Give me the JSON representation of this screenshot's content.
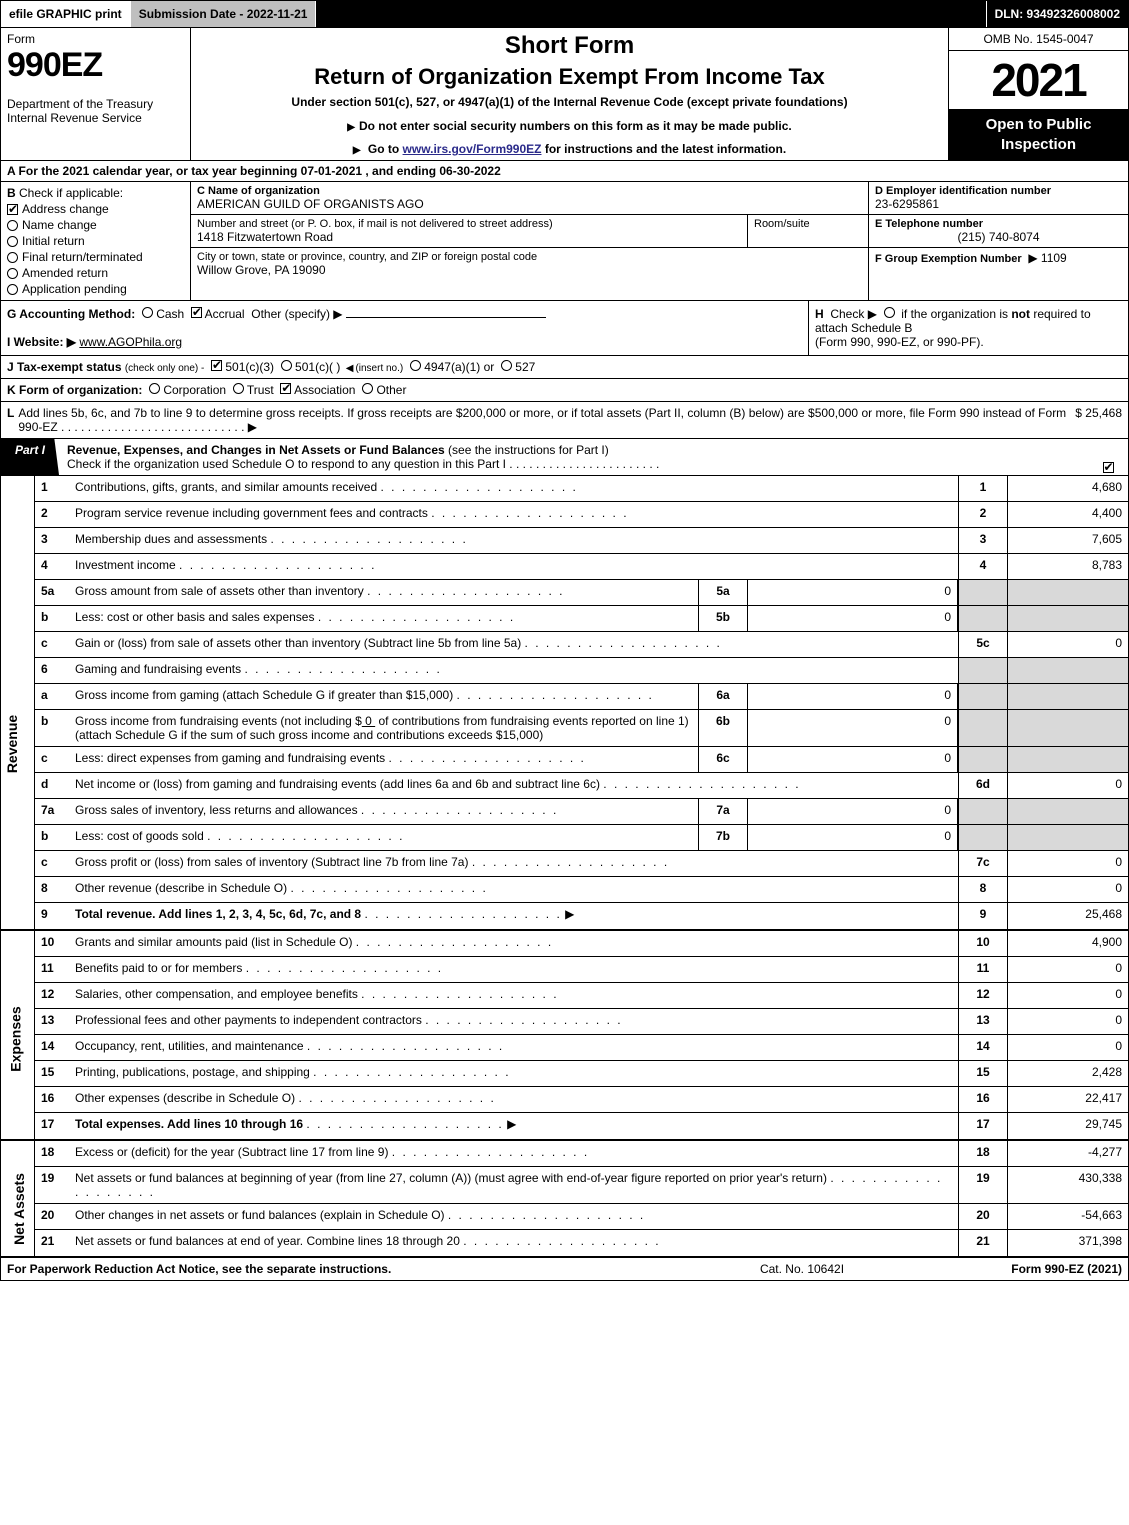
{
  "topbar": {
    "efile": "efile GRAPHIC print",
    "subdate_label": "Submission Date - 2022-11-21",
    "dln": "DLN: 93492326008002"
  },
  "header": {
    "form_word": "Form",
    "form_num": "990EZ",
    "dept": "Department of the Treasury",
    "irs": "Internal Revenue Service",
    "short_form": "Short Form",
    "title2": "Return of Organization Exempt From Income Tax",
    "sub": "Under section 501(c), 527, or 4947(a)(1) of the Internal Revenue Code (except private foundations)",
    "instr1": "Do not enter social security numbers on this form as it may be made public.",
    "instr2_pre": "Go to ",
    "instr2_link": "www.irs.gov/Form990EZ",
    "instr2_post": " for instructions and the latest information.",
    "omb": "OMB No. 1545-0047",
    "year": "2021",
    "open": "Open to Public Inspection"
  },
  "lineA": "A  For the 2021 calendar year, or tax year beginning 07-01-2021 , and ending 06-30-2022",
  "boxB": {
    "label": "B",
    "check_if": "Check if applicable:",
    "items": [
      "Address change",
      "Name change",
      "Initial return",
      "Final return/terminated",
      "Amended return",
      "Application pending"
    ],
    "checked": [
      true,
      false,
      false,
      false,
      false,
      false
    ]
  },
  "boxC": {
    "name_lbl": "C Name of organization",
    "name": "AMERICAN GUILD OF ORGANISTS AGO",
    "addr_lbl": "Number and street (or P. O. box, if mail is not delivered to street address)",
    "addr": "1418 Fitzwatertown Road",
    "room_lbl": "Room/suite",
    "city_lbl": "City or town, state or province, country, and ZIP or foreign postal code",
    "city": "Willow Grove, PA  19090"
  },
  "boxD": {
    "lbl": "D Employer identification number",
    "val": "23-6295861"
  },
  "boxE": {
    "lbl": "E Telephone number",
    "val": "(215) 740-8074"
  },
  "boxF": {
    "lbl": "F Group Exemption Number",
    "val": "1109"
  },
  "rowG": {
    "lbl": "G Accounting Method:",
    "cash": "Cash",
    "accrual": "Accrual",
    "other": "Other (specify)"
  },
  "rowH": {
    "lbl": "H",
    "txt1": "Check ▶",
    "txt2": "if the organization is ",
    "not": "not",
    "txt3": " required to attach Schedule B",
    "txt4": "(Form 990, 990-EZ, or 990-PF)."
  },
  "rowI": {
    "lbl": "I Website: ▶",
    "val": "www.AGOPhila.org"
  },
  "rowJ": {
    "lbl": "J Tax-exempt status",
    "note": "(check only one) -",
    "o1": "501(c)(3)",
    "o2": "501(c)(   )",
    "insert": "(insert no.)",
    "o3": "4947(a)(1) or",
    "o4": "527"
  },
  "rowK": {
    "lbl": "K Form of organization:",
    "opts": [
      "Corporation",
      "Trust",
      "Association",
      "Other"
    ],
    "checked": [
      false,
      false,
      true,
      false
    ]
  },
  "rowL": {
    "lbl": "L",
    "txt": "Add lines 5b, 6c, and 7b to line 9 to determine gross receipts. If gross receipts are $200,000 or more, or if total assets (Part II, column (B) below) are $500,000 or more, file Form 990 instead of Form 990-EZ",
    "amt": "$ 25,468"
  },
  "part1": {
    "tab": "Part I",
    "title": "Revenue, Expenses, and Changes in Net Assets or Fund Balances",
    "title_note": "(see the instructions for Part I)",
    "sub": "Check if the organization used Schedule O to respond to any question in this Part I",
    "checked": true
  },
  "sections": {
    "revenue": "Revenue",
    "expenses": "Expenses",
    "netassets": "Net Assets"
  },
  "lines": {
    "1": {
      "n": "1",
      "d": "Contributions, gifts, grants, and similar amounts received",
      "r": "1",
      "v": "4,680"
    },
    "2": {
      "n": "2",
      "d": "Program service revenue including government fees and contracts",
      "r": "2",
      "v": "4,400"
    },
    "3": {
      "n": "3",
      "d": "Membership dues and assessments",
      "r": "3",
      "v": "7,605"
    },
    "4": {
      "n": "4",
      "d": "Investment income",
      "r": "4",
      "v": "8,783"
    },
    "5a": {
      "n": "5a",
      "d": "Gross amount from sale of assets other than inventory",
      "mn": "5a",
      "mv": "0"
    },
    "5b": {
      "n": "b",
      "d": "Less: cost or other basis and sales expenses",
      "mn": "5b",
      "mv": "0"
    },
    "5c": {
      "n": "c",
      "d": "Gain or (loss) from sale of assets other than inventory (Subtract line 5b from line 5a)",
      "r": "5c",
      "v": "0"
    },
    "6": {
      "n": "6",
      "d": "Gaming and fundraising events"
    },
    "6a": {
      "n": "a",
      "d": "Gross income from gaming (attach Schedule G if greater than $15,000)",
      "mn": "6a",
      "mv": "0"
    },
    "6b": {
      "n": "b",
      "d1": "Gross income from fundraising events (not including $",
      "d1b": "0",
      "d2": "of contributions from fundraising events reported on line 1) (attach Schedule G if the sum of such gross income and contributions exceeds $15,000)",
      "mn": "6b",
      "mv": "0"
    },
    "6c": {
      "n": "c",
      "d": "Less: direct expenses from gaming and fundraising events",
      "mn": "6c",
      "mv": "0"
    },
    "6d": {
      "n": "d",
      "d": "Net income or (loss) from gaming and fundraising events (add lines 6a and 6b and subtract line 6c)",
      "r": "6d",
      "v": "0"
    },
    "7a": {
      "n": "7a",
      "d": "Gross sales of inventory, less returns and allowances",
      "mn": "7a",
      "mv": "0"
    },
    "7b": {
      "n": "b",
      "d": "Less: cost of goods sold",
      "mn": "7b",
      "mv": "0"
    },
    "7c": {
      "n": "c",
      "d": "Gross profit or (loss) from sales of inventory (Subtract line 7b from line 7a)",
      "r": "7c",
      "v": "0"
    },
    "8": {
      "n": "8",
      "d": "Other revenue (describe in Schedule O)",
      "r": "8",
      "v": "0"
    },
    "9": {
      "n": "9",
      "d": "Total revenue. Add lines 1, 2, 3, 4, 5c, 6d, 7c, and 8",
      "r": "9",
      "v": "25,468",
      "bold": true,
      "arrow": true
    },
    "10": {
      "n": "10",
      "d": "Grants and similar amounts paid (list in Schedule O)",
      "r": "10",
      "v": "4,900"
    },
    "11": {
      "n": "11",
      "d": "Benefits paid to or for members",
      "r": "11",
      "v": "0"
    },
    "12": {
      "n": "12",
      "d": "Salaries, other compensation, and employee benefits",
      "r": "12",
      "v": "0"
    },
    "13": {
      "n": "13",
      "d": "Professional fees and other payments to independent contractors",
      "r": "13",
      "v": "0"
    },
    "14": {
      "n": "14",
      "d": "Occupancy, rent, utilities, and maintenance",
      "r": "14",
      "v": "0"
    },
    "15": {
      "n": "15",
      "d": "Printing, publications, postage, and shipping",
      "r": "15",
      "v": "2,428"
    },
    "16": {
      "n": "16",
      "d": "Other expenses (describe in Schedule O)",
      "r": "16",
      "v": "22,417"
    },
    "17": {
      "n": "17",
      "d": "Total expenses. Add lines 10 through 16",
      "r": "17",
      "v": "29,745",
      "bold": true,
      "arrow": true
    },
    "18": {
      "n": "18",
      "d": "Excess or (deficit) for the year (Subtract line 17 from line 9)",
      "r": "18",
      "v": "-4,277"
    },
    "19": {
      "n": "19",
      "d": "Net assets or fund balances at beginning of year (from line 27, column (A)) (must agree with end-of-year figure reported on prior year's return)",
      "r": "19",
      "v": "430,338"
    },
    "20": {
      "n": "20",
      "d": "Other changes in net assets or fund balances (explain in Schedule O)",
      "r": "20",
      "v": "-54,663"
    },
    "21": {
      "n": "21",
      "d": "Net assets or fund balances at end of year. Combine lines 18 through 20",
      "r": "21",
      "v": "371,398"
    }
  },
  "footer": {
    "left": "For Paperwork Reduction Act Notice, see the separate instructions.",
    "mid": "Cat. No. 10642I",
    "right_pre": "Form ",
    "right_b": "990-EZ",
    "right_post": " (2021)"
  }
}
